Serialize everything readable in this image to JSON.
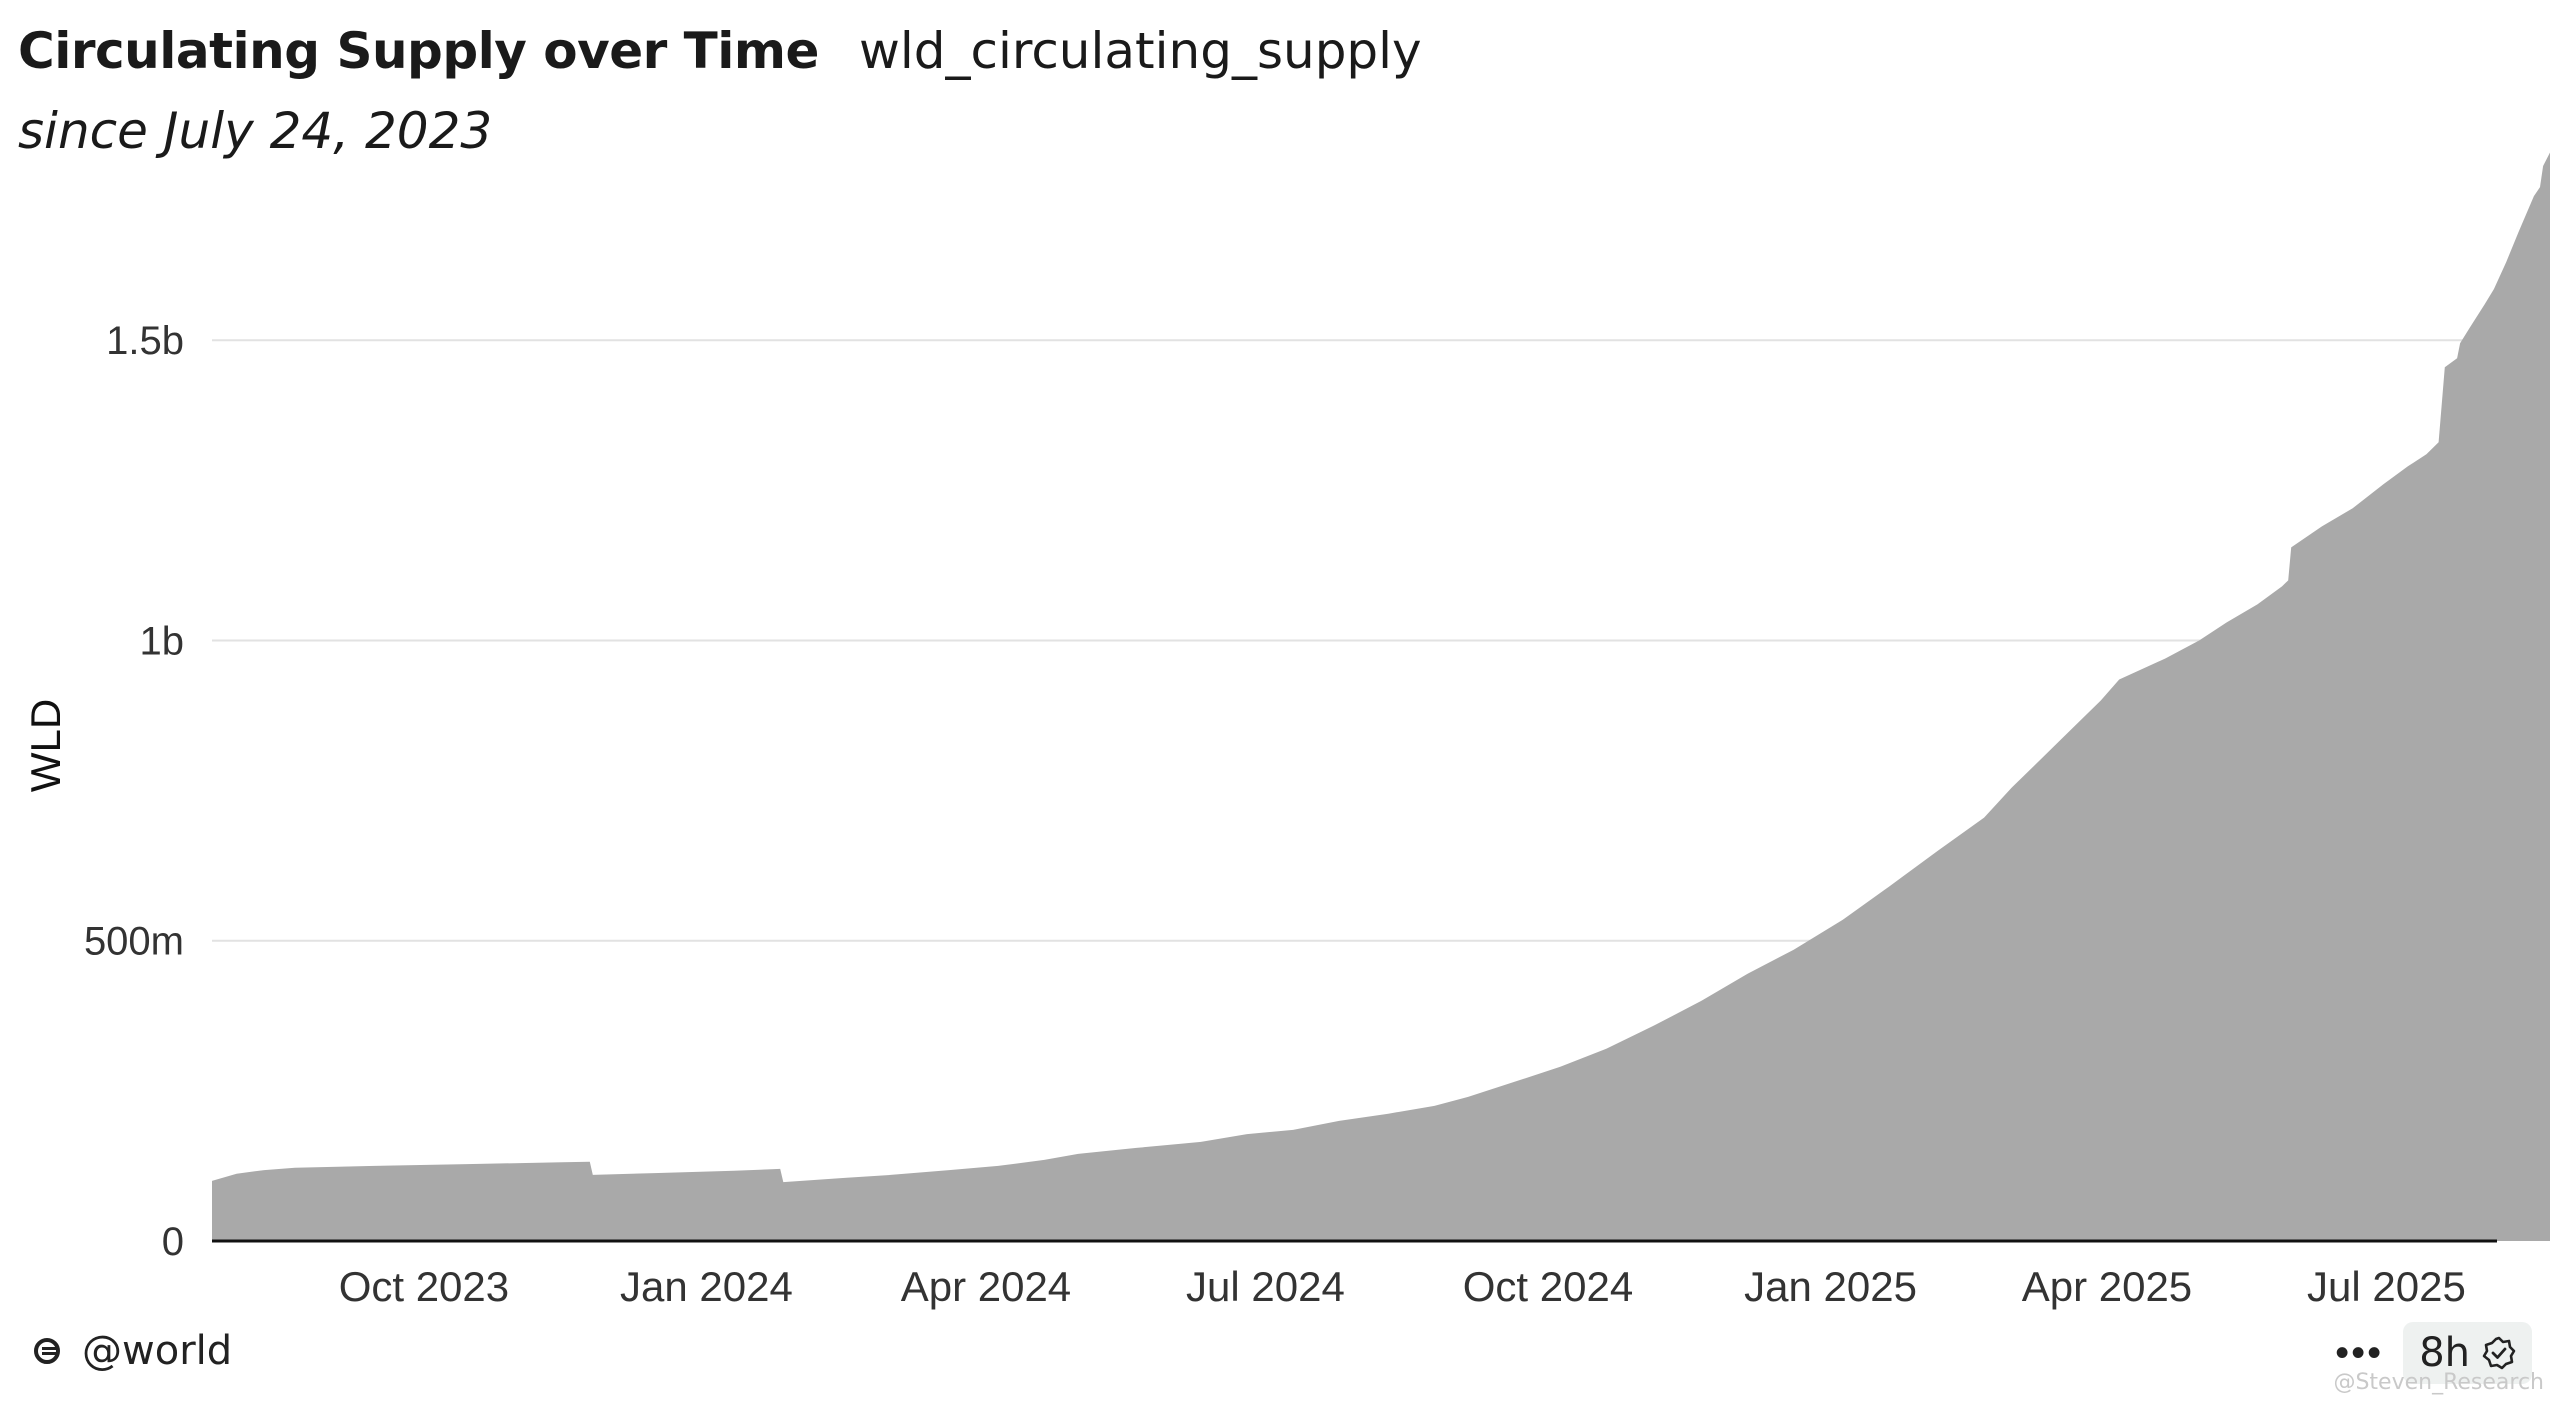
{
  "header": {
    "title": "Circulating Supply over Time",
    "query_name": "wld_circulating_supply",
    "subtitle": "since July 24, 2023"
  },
  "footer": {
    "handle": "@world",
    "more_label": "•••",
    "freshness": "8h",
    "watermark": "@Steven_Research"
  },
  "colors": {
    "area": "#a9a9a9",
    "grid": "#e2e2e2",
    "axis": "#111111",
    "text": "#333333"
  },
  "chart_data": {
    "type": "area",
    "title": "Circulating Supply over Time",
    "subtitle": "since July 24, 2023",
    "xlabel": "",
    "ylabel": "WLD",
    "ylim": [
      0,
      1850000000
    ],
    "xlim": [
      "2023-07-24",
      "2025-08-06"
    ],
    "grid": true,
    "legend": "none",
    "yticks": [
      {
        "value": 0,
        "label": "0"
      },
      {
        "value": 500000000,
        "label": "500m"
      },
      {
        "value": 1000000000,
        "label": "1b"
      },
      {
        "value": 1500000000,
        "label": "1.5b"
      }
    ],
    "xticks": [
      {
        "date": "2023-10-01",
        "label": "Oct 2023"
      },
      {
        "date": "2024-01-01",
        "label": "Jan 2024"
      },
      {
        "date": "2024-04-01",
        "label": "Apr 2024"
      },
      {
        "date": "2024-07-01",
        "label": "Jul 2024"
      },
      {
        "date": "2024-10-01",
        "label": "Oct 2024"
      },
      {
        "date": "2025-01-01",
        "label": "Jan 2025"
      },
      {
        "date": "2025-04-01",
        "label": "Apr 2025"
      },
      {
        "date": "2025-07-01",
        "label": "Jul 2025"
      }
    ],
    "series": [
      {
        "points": [
          [
            "2023-07-24",
            100000000
          ],
          [
            "2023-08-01",
            112000000
          ],
          [
            "2023-08-10",
            118000000
          ],
          [
            "2023-08-20",
            122000000
          ],
          [
            "2023-09-15",
            125000000
          ],
          [
            "2023-10-15",
            128000000
          ],
          [
            "2023-11-15",
            131000000
          ],
          [
            "2023-11-24",
            132000000
          ],
          [
            "2023-11-25",
            110000000
          ],
          [
            "2023-12-15",
            113000000
          ],
          [
            "2024-01-10",
            117000000
          ],
          [
            "2024-01-25",
            120000000
          ],
          [
            "2024-01-26",
            98000000
          ],
          [
            "2024-02-15",
            105000000
          ],
          [
            "2024-03-01",
            110000000
          ],
          [
            "2024-03-20",
            118000000
          ],
          [
            "2024-04-05",
            125000000
          ],
          [
            "2024-04-20",
            135000000
          ],
          [
            "2024-05-01",
            145000000
          ],
          [
            "2024-05-20",
            155000000
          ],
          [
            "2024-06-10",
            165000000
          ],
          [
            "2024-06-25",
            178000000
          ],
          [
            "2024-07-10",
            185000000
          ],
          [
            "2024-07-25",
            200000000
          ],
          [
            "2024-08-10",
            212000000
          ],
          [
            "2024-08-25",
            225000000
          ],
          [
            "2024-09-05",
            240000000
          ],
          [
            "2024-09-20",
            265000000
          ],
          [
            "2024-10-05",
            290000000
          ],
          [
            "2024-10-20",
            320000000
          ],
          [
            "2024-11-05",
            360000000
          ],
          [
            "2024-11-20",
            400000000
          ],
          [
            "2024-12-05",
            445000000
          ],
          [
            "2024-12-20",
            485000000
          ],
          [
            "2025-01-05",
            535000000
          ],
          [
            "2025-01-20",
            590000000
          ],
          [
            "2025-02-05",
            650000000
          ],
          [
            "2025-02-20",
            705000000
          ],
          [
            "2025-03-01",
            755000000
          ],
          [
            "2025-03-10",
            800000000
          ],
          [
            "2025-03-20",
            850000000
          ],
          [
            "2025-03-30",
            900000000
          ],
          [
            "2025-04-05",
            935000000
          ],
          [
            "2025-04-20",
            970000000
          ],
          [
            "2025-05-01",
            1000000000
          ],
          [
            "2025-05-10",
            1030000000
          ],
          [
            "2025-05-20",
            1060000000
          ],
          [
            "2025-05-28",
            1090000000
          ],
          [
            "2025-05-30",
            1100000000
          ],
          [
            "2025-05-31",
            1155000000
          ],
          [
            "2025-06-10",
            1190000000
          ],
          [
            "2025-06-20",
            1220000000
          ],
          [
            "2025-06-30",
            1260000000
          ],
          [
            "2025-07-08",
            1290000000
          ],
          [
            "2025-07-14",
            1310000000
          ],
          [
            "2025-07-18",
            1330000000
          ],
          [
            "2025-07-20",
            1455000000
          ],
          [
            "2025-07-24",
            1470000000
          ],
          [
            "2025-07-25",
            1495000000
          ],
          [
            "2025-07-28",
            1520000000
          ],
          [
            "2025-08-02",
            1560000000
          ],
          [
            "2025-08-05",
            1585000000
          ],
          [
            "2025-08-09",
            1630000000
          ],
          [
            "2025-08-13",
            1680000000
          ],
          [
            "2025-08-18",
            1740000000
          ],
          [
            "2025-08-20",
            1755000000
          ],
          [
            "2025-08-21",
            1790000000
          ],
          [
            "2025-08-24",
            1820000000
          ],
          [
            "2025-08-27",
            1845000000
          ]
        ]
      }
    ]
  }
}
